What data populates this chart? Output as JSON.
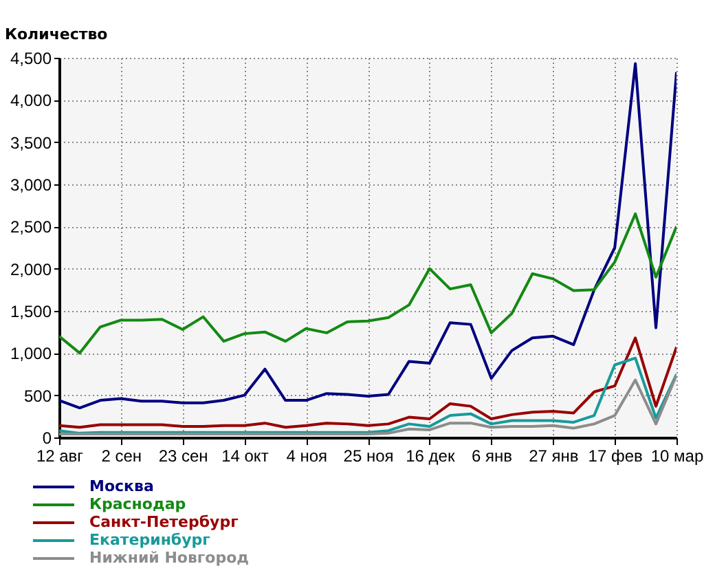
{
  "chart_data": {
    "type": "line",
    "ylabel": "Количество",
    "categories": [
      "12 авг",
      null,
      null,
      "2 сен",
      null,
      null,
      "23 сен",
      null,
      null,
      "14 окт",
      null,
      null,
      "4 ноя",
      null,
      null,
      "25 ноя",
      null,
      null,
      "16 дек",
      null,
      null,
      "6 янв",
      null,
      null,
      "27 янв",
      null,
      null,
      "17 фев",
      null,
      null,
      "10 мар"
    ],
    "ylim": [
      0,
      4500
    ],
    "yticks": [
      0,
      500,
      {
        "value": 1000,
        "label": "1,000"
      },
      {
        "value": 1500,
        "label": "1,500"
      },
      {
        "value": 2000,
        "label": "2,000"
      },
      {
        "value": 2500,
        "label": "2,500"
      },
      {
        "value": 3000,
        "label": "3,000"
      },
      {
        "value": 3500,
        "label": "3,500"
      },
      {
        "value": 4000,
        "label": "4,000"
      },
      {
        "value": 4500,
        "label": "4,500"
      }
    ],
    "grid": true,
    "legend": "bottom left",
    "series": [
      {
        "name": "Москва",
        "color": "#000080",
        "values": [
          440,
          350,
          440,
          460,
          430,
          430,
          410,
          410,
          440,
          500,
          810,
          440,
          440,
          520,
          510,
          490,
          510,
          900,
          880,
          1360,
          1340,
          700,
          1030,
          1180,
          1200,
          1100,
          1750,
          2250,
          4430,
          1300,
          4330
        ]
      },
      {
        "name": "Краснодар",
        "color": "#138a13",
        "values": [
          1200,
          1000,
          1310,
          1390,
          1390,
          1400,
          1280,
          1430,
          1140,
          1230,
          1250,
          1140,
          1290,
          1240,
          1370,
          1380,
          1420,
          1570,
          2000,
          1760,
          1810,
          1240,
          1470,
          1940,
          1880,
          1740,
          1750,
          2080,
          2650,
          1900,
          2500
        ]
      },
      {
        "name": "Санкт-Петербург",
        "color": "#990000",
        "values": [
          140,
          120,
          150,
          150,
          150,
          150,
          130,
          130,
          140,
          140,
          170,
          120,
          140,
          170,
          160,
          140,
          160,
          240,
          220,
          400,
          370,
          220,
          270,
          300,
          310,
          290,
          540,
          610,
          1180,
          370,
          1070
        ]
      },
      {
        "name": "Екатеринбург",
        "color": "#189a9a",
        "values": [
          80,
          50,
          60,
          60,
          60,
          60,
          60,
          60,
          60,
          60,
          60,
          60,
          60,
          60,
          60,
          60,
          80,
          160,
          130,
          260,
          280,
          160,
          200,
          200,
          200,
          180,
          260,
          860,
          940,
          230,
          750
        ]
      },
      {
        "name": "Нижний Новгород",
        "color": "#8c8c8c",
        "values": [
          40,
          40,
          40,
          40,
          40,
          40,
          40,
          40,
          40,
          40,
          40,
          40,
          40,
          40,
          40,
          40,
          50,
          100,
          90,
          170,
          170,
          120,
          130,
          130,
          140,
          110,
          160,
          260,
          680,
          160,
          740
        ]
      }
    ]
  }
}
